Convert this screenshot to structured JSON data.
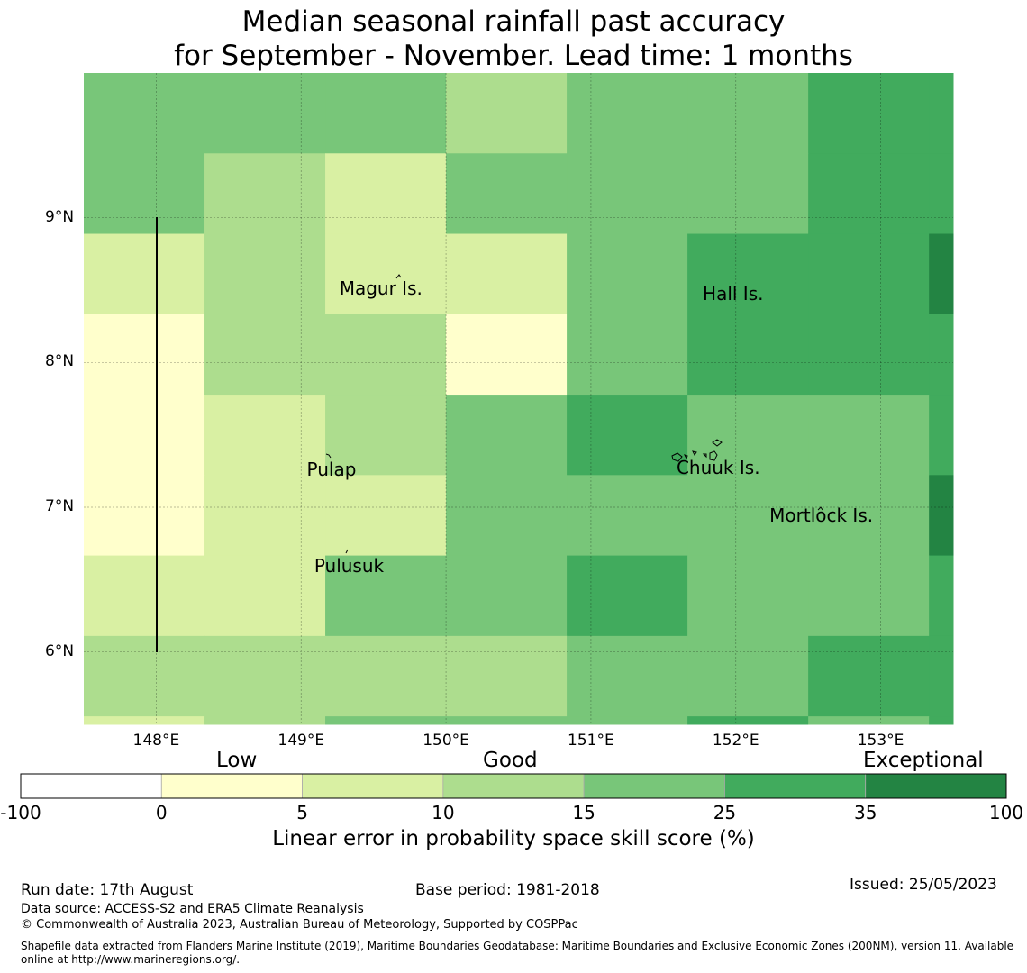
{
  "title_line1": "Median seasonal rainfall past accuracy",
  "title_line2": "for September - November. Lead time: 1 months",
  "map": {
    "lon_range": [
      147.5,
      153.5
    ],
    "lat_range": [
      5.5,
      10.0
    ],
    "lat_ticks": [
      {
        "value": 9,
        "label": "9°N"
      },
      {
        "value": 8,
        "label": "8°N"
      },
      {
        "value": 7,
        "label": "7°N"
      },
      {
        "value": 6,
        "label": "6°N"
      }
    ],
    "lon_ticks": [
      {
        "value": 148,
        "label": "148°E"
      },
      {
        "value": 149,
        "label": "149°E"
      },
      {
        "value": 150,
        "label": "150°E"
      },
      {
        "value": 151,
        "label": "151°E"
      },
      {
        "value": 152,
        "label": "152°E"
      },
      {
        "value": 153,
        "label": "153°E"
      }
    ],
    "grid_lon_start": 147.5,
    "grid_lon_step": 0.8333,
    "grid_lat_top": 10.0,
    "grid_lat_step": 0.5556,
    "grid_levels": [
      [
        3,
        3,
        3,
        2,
        3,
        3,
        4,
        4
      ],
      [
        3,
        2,
        1,
        3,
        3,
        3,
        4,
        4
      ],
      [
        1,
        2,
        1,
        1,
        3,
        4,
        4,
        5
      ],
      [
        0,
        2,
        2,
        0,
        3,
        4,
        4,
        4
      ],
      [
        0,
        1,
        2,
        3,
        4,
        3,
        3,
        4
      ],
      [
        0,
        1,
        1,
        3,
        3,
        3,
        3,
        5
      ],
      [
        1,
        1,
        3,
        3,
        4,
        3,
        3,
        4
      ],
      [
        2,
        2,
        2,
        2,
        3,
        3,
        4,
        4
      ],
      [
        1,
        2,
        3,
        3,
        3,
        4,
        3,
        4
      ]
    ],
    "places": [
      {
        "name": "Magur Is.",
        "lon": 149.55,
        "lat": 8.5
      },
      {
        "name": "Hall Is.",
        "lon": 151.98,
        "lat": 8.46
      },
      {
        "name": "Pulap",
        "lon": 149.21,
        "lat": 7.25
      },
      {
        "name": "Chuuk Is.",
        "lon": 151.88,
        "lat": 7.26
      },
      {
        "name": "Mortlock Is.",
        "lon": 152.59,
        "lat": 6.93
      },
      {
        "name": "Pulusuk",
        "lon": 149.33,
        "lat": 6.58
      }
    ]
  },
  "colorbar": {
    "category_labels": [
      "Low",
      "Good",
      "Exceptional"
    ],
    "tick_labels": [
      "-100",
      "0",
      "5",
      "10",
      "15",
      "25",
      "35",
      "100"
    ],
    "colors": [
      "#ffffff",
      "#ffffcc",
      "#d9f0a3",
      "#addd8e",
      "#78c679",
      "#41ab5d",
      "#238443"
    ],
    "label": "Linear error in probability space skill score (%)"
  },
  "footer": {
    "run_date": "Run date: 17th August",
    "base_period": "Base period: 1981-2018",
    "issued": "Issued: 25/05/2023",
    "data_source": "Data source: ACCESS-S2 and ERA5 Climate Reanalysis",
    "copyright": "© Commonwealth of Australia 2023, Australian Bureau of Meteorology, Supported by COSPPac",
    "shapefile": "Shapefile data extracted from Flanders Marine Institute (2019), Maritime Boundaries Geodatabase: Maritime Boundaries and Exclusive Economic Zones (200NM), version 11. Available online at http://www.marineregions.org/."
  }
}
